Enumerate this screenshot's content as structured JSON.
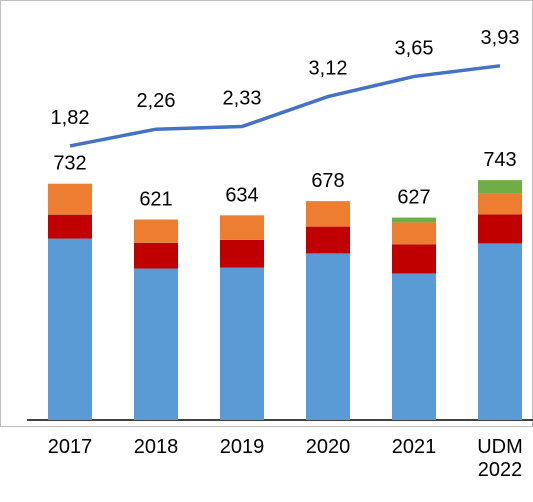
{
  "chart_data": {
    "type": "bar",
    "stacked": true,
    "categories": [
      "2017",
      "2018",
      "2019",
      "2020",
      "2021",
      "UDM 2022"
    ],
    "series": [
      {
        "color": "#5b9bd5",
        "values": [
          562,
          469,
          472,
          516,
          454,
          547
        ]
      },
      {
        "color": "#c00000",
        "values": [
          74,
          80,
          86,
          83,
          90,
          90
        ]
      },
      {
        "color": "#ed7d31",
        "values": [
          96,
          72,
          76,
          79,
          68,
          65
        ]
      },
      {
        "color": "#70ad47",
        "values": [
          null,
          null,
          null,
          null,
          15,
          41
        ]
      },
      {
        "type": "line",
        "axis": "y2",
        "color": "#4472c4",
        "values": [
          1.82,
          2.26,
          2.33,
          3.12,
          3.65,
          3.93
        ],
        "value_labels": [
          "1,82",
          "2,26",
          "2,33",
          "3,12",
          "3,65",
          "3,93"
        ]
      }
    ],
    "totals": [
      732,
      621,
      634,
      678,
      627,
      743
    ],
    "ylim": [
      0,
      1270
    ],
    "y2lim": [
      -5.4,
      5.4
    ]
  }
}
